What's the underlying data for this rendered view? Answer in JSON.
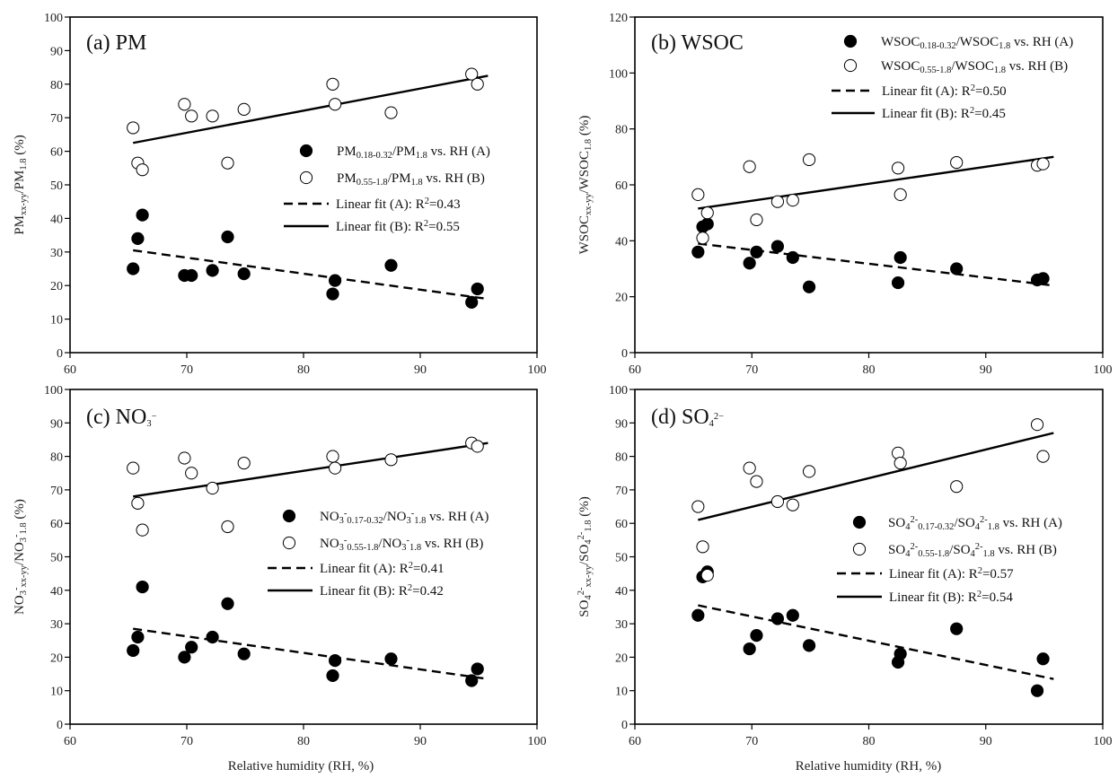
{
  "figure": {
    "xlabel": "Relative humidity (RH, %)"
  },
  "chart_data": [
    {
      "type": "scatter",
      "id": "a",
      "title": "(a) PM",
      "ylabel": "PM xx-yy /PM 1.8 (%)",
      "ylabel_parts": [
        [
          "PM",
          ""
        ],
        [
          "xx-yy",
          "sub"
        ],
        [
          "/PM",
          ""
        ],
        [
          "1.8",
          "sub"
        ],
        [
          " (%)",
          ""
        ]
      ],
      "xlim": [
        60,
        100
      ],
      "ylim": [
        0,
        100
      ],
      "xticks": [
        60,
        70,
        80,
        90,
        100
      ],
      "yticks": [
        0,
        10,
        20,
        30,
        40,
        50,
        60,
        70,
        80,
        90,
        100
      ],
      "legend_position": "middle-right",
      "series": [
        {
          "name": "PM0.18-0.32/PM1.8 vs. RH (A)",
          "marker": "filled",
          "label_parts": [
            [
              "PM",
              ""
            ],
            [
              "0.18-0.32",
              "sub"
            ],
            [
              "/PM",
              ""
            ],
            [
              "1.8",
              "sub"
            ],
            [
              "  vs. RH (A)",
              ""
            ]
          ],
          "x": [
            65.4,
            65.8,
            66.2,
            69.8,
            70.4,
            72.2,
            73.5,
            74.9,
            82.5,
            82.7,
            87.5,
            94.4,
            94.9
          ],
          "y": [
            25,
            34,
            41,
            23,
            23,
            24.5,
            34.5,
            23.5,
            17.5,
            21.5,
            26,
            15,
            19
          ]
        },
        {
          "name": "PM0.55-1.8/PM1.8 vs. RH (B)",
          "marker": "open",
          "label_parts": [
            [
              "PM",
              ""
            ],
            [
              "0.55-1.8",
              "sub"
            ],
            [
              "/PM",
              ""
            ],
            [
              "1.8",
              "sub"
            ],
            [
              "  vs. RH (B)",
              ""
            ]
          ],
          "x": [
            65.4,
            65.8,
            66.2,
            69.8,
            70.4,
            72.2,
            73.5,
            74.9,
            82.5,
            82.7,
            87.5,
            94.4,
            94.9
          ],
          "y": [
            67,
            56.5,
            54.5,
            74,
            70.5,
            70.5,
            56.5,
            72.5,
            80,
            74,
            71.5,
            83,
            80
          ]
        }
      ],
      "fits": [
        {
          "name": "Linear fit (A): R2=0.43",
          "style": "dashed",
          "label_parts": [
            [
              "Linear fit (A): R",
              ""
            ],
            [
              "2",
              "sup"
            ],
            [
              "=0.43",
              ""
            ]
          ],
          "x": [
            65.4,
            95.8
          ],
          "y": [
            30.5,
            16
          ]
        },
        {
          "name": "Linear fit (B): R2=0.55",
          "style": "solid",
          "label_parts": [
            [
              "Linear fit (B): R",
              ""
            ],
            [
              "2",
              "sup"
            ],
            [
              "=0.55",
              ""
            ]
          ],
          "x": [
            65.4,
            95.8
          ],
          "y": [
            62.5,
            82.5
          ]
        }
      ]
    },
    {
      "type": "scatter",
      "id": "b",
      "title": "(b) WSOC",
      "ylabel": "WSOC xx-yy /WSOC 1.8 (%)",
      "ylabel_parts": [
        [
          "WSOC",
          ""
        ],
        [
          "xx-yy",
          "sub"
        ],
        [
          "/WSOC",
          ""
        ],
        [
          "1.8",
          "sub"
        ],
        [
          " (%)",
          ""
        ]
      ],
      "xlim": [
        60,
        100
      ],
      "ylim": [
        0,
        120
      ],
      "xticks": [
        60,
        70,
        80,
        90,
        100
      ],
      "yticks": [
        0,
        20,
        40,
        60,
        80,
        100,
        120
      ],
      "legend_position": "top-right",
      "series": [
        {
          "name": "WSOC0.18-0.32/WSOC1.8 vs. RH (A)",
          "marker": "filled",
          "label_parts": [
            [
              "WSOC",
              ""
            ],
            [
              "0.18-0.32",
              "sub"
            ],
            [
              "/WSOC",
              ""
            ],
            [
              "1.8",
              "sub"
            ],
            [
              " vs. RH (A)",
              ""
            ]
          ],
          "x": [
            65.4,
            65.8,
            66.2,
            69.8,
            70.4,
            72.2,
            73.5,
            74.9,
            82.5,
            82.7,
            87.5,
            94.4,
            94.9
          ],
          "y": [
            36,
            45,
            46,
            32,
            36,
            38,
            34,
            23.5,
            25,
            34,
            30,
            26,
            26.5
          ]
        },
        {
          "name": "WSOC0.55-1.8/WSOC1.8 vs. RH (B)",
          "marker": "open",
          "label_parts": [
            [
              "WSOC",
              ""
            ],
            [
              "0.55-1.8",
              "sub"
            ],
            [
              "/WSOC",
              ""
            ],
            [
              "1.8",
              "sub"
            ],
            [
              " vs. RH (B)",
              ""
            ]
          ],
          "x": [
            65.4,
            65.8,
            66.2,
            69.8,
            70.4,
            72.2,
            73.5,
            74.9,
            82.5,
            82.7,
            87.5,
            94.4,
            94.9
          ],
          "y": [
            56.5,
            41,
            50,
            66.5,
            47.5,
            54,
            54.5,
            69,
            66,
            56.5,
            68,
            67,
            67.5
          ]
        }
      ],
      "fits": [
        {
          "name": "Linear fit (A): R2=0.50",
          "style": "dashed",
          "label_parts": [
            [
              "Linear fit (A): R",
              ""
            ],
            [
              "2",
              "sup"
            ],
            [
              "=0.50",
              ""
            ]
          ],
          "x": [
            65.4,
            95.8
          ],
          "y": [
            39,
            24
          ]
        },
        {
          "name": "Linear fit (B): R2=0.45",
          "style": "solid",
          "label_parts": [
            [
              "Linear fit (B): R",
              ""
            ],
            [
              "2",
              "sup"
            ],
            [
              "=0.45",
              ""
            ]
          ],
          "x": [
            65.4,
            95.8
          ],
          "y": [
            51.5,
            70
          ]
        }
      ]
    },
    {
      "type": "scatter",
      "id": "c",
      "title": "(c) NO3−",
      "title_parts": [
        [
          "(c) NO",
          ""
        ],
        [
          "3",
          "sub"
        ],
        [
          "−",
          "sup"
        ]
      ],
      "ylabel": "NO3- xx-yy /NO3- 1.8 (%)",
      "ylabel_parts": [
        [
          "NO",
          ""
        ],
        [
          "3",
          "sub"
        ],
        [
          "-",
          "sup"
        ],
        [
          "xx-yy",
          "sub"
        ],
        [
          "/NO",
          ""
        ],
        [
          "3",
          "sub"
        ],
        [
          "-",
          "sup"
        ],
        [
          "1.8",
          "sub"
        ],
        [
          " (%)",
          ""
        ]
      ],
      "xlim": [
        60,
        100
      ],
      "ylim": [
        0,
        100
      ],
      "xticks": [
        60,
        70,
        80,
        90,
        100
      ],
      "yticks": [
        0,
        10,
        20,
        30,
        40,
        50,
        60,
        70,
        80,
        90,
        100
      ],
      "legend_position": "middle-right",
      "series": [
        {
          "name": "NO3-0.17-0.32/NO3-1.8 vs. RH (A)",
          "marker": "filled",
          "label_parts": [
            [
              "NO",
              ""
            ],
            [
              "3",
              "sub"
            ],
            [
              "-",
              "sup"
            ],
            [
              "0.17-0.32",
              "sub"
            ],
            [
              "/NO",
              ""
            ],
            [
              "3",
              "sub"
            ],
            [
              "-",
              "sup"
            ],
            [
              "1.8",
              "sub"
            ],
            [
              " vs. RH (A)",
              ""
            ]
          ],
          "x": [
            65.4,
            65.8,
            66.2,
            69.8,
            70.4,
            72.2,
            73.5,
            74.9,
            82.5,
            82.7,
            87.5,
            94.4,
            94.9
          ],
          "y": [
            22,
            26,
            41,
            20,
            23,
            26,
            36,
            21,
            14.5,
            19,
            19.5,
            13,
            16.5
          ]
        },
        {
          "name": "NO3-0.55-1.8/NO3-1.8 vs. RH (B)",
          "marker": "open",
          "label_parts": [
            [
              "NO",
              ""
            ],
            [
              "3",
              "sub"
            ],
            [
              "-",
              "sup"
            ],
            [
              "0.55-1.8",
              "sub"
            ],
            [
              "/NO",
              ""
            ],
            [
              "3",
              "sub"
            ],
            [
              "-",
              "sup"
            ],
            [
              "1.8",
              "sub"
            ],
            [
              " vs. RH (B)",
              ""
            ]
          ],
          "x": [
            65.4,
            65.8,
            66.2,
            69.8,
            70.4,
            72.2,
            73.5,
            74.9,
            82.5,
            82.7,
            87.5,
            94.4,
            94.9
          ],
          "y": [
            76.5,
            66,
            58,
            79.5,
            75,
            70.5,
            59,
            78,
            80,
            76.5,
            79,
            84,
            83
          ]
        }
      ],
      "fits": [
        {
          "name": "Linear fit (A): R2=0.41",
          "style": "dashed",
          "label_parts": [
            [
              "Linear fit (A): R",
              ""
            ],
            [
              "2",
              "sup"
            ],
            [
              "=0.41",
              ""
            ]
          ],
          "x": [
            65.4,
            95.8
          ],
          "y": [
            28.5,
            13.5
          ]
        },
        {
          "name": "Linear fit (B): R2=0.42",
          "style": "solid",
          "label_parts": [
            [
              "Linear fit (B): R",
              ""
            ],
            [
              "2",
              "sup"
            ],
            [
              "=0.42",
              ""
            ]
          ],
          "x": [
            65.4,
            95.8
          ],
          "y": [
            68,
            84
          ]
        }
      ]
    },
    {
      "type": "scatter",
      "id": "d",
      "title": "(d) SO42−",
      "title_parts": [
        [
          "(d) SO",
          ""
        ],
        [
          "4",
          "sub"
        ],
        [
          "2−",
          "sup"
        ]
      ],
      "ylabel": "SO42- xx-yy /SO42- 1.8 (%)",
      "ylabel_parts": [
        [
          "SO",
          ""
        ],
        [
          "4",
          "sub"
        ],
        [
          "2-",
          "sup"
        ],
        [
          "xx-yy",
          "sub"
        ],
        [
          "/SO",
          ""
        ],
        [
          "4",
          "sub"
        ],
        [
          "2-",
          "sup"
        ],
        [
          "1.8",
          "sub"
        ],
        [
          " (%)",
          ""
        ]
      ],
      "xlim": [
        60,
        100
      ],
      "ylim": [
        0,
        100
      ],
      "xticks": [
        60,
        70,
        80,
        90,
        100
      ],
      "yticks": [
        0,
        10,
        20,
        30,
        40,
        50,
        60,
        70,
        80,
        90,
        100
      ],
      "legend_position": "middle-right",
      "series": [
        {
          "name": "SO42-0.17-0.32/SO42-1.8 vs. RH (A)",
          "marker": "filled",
          "label_parts": [
            [
              "SO",
              ""
            ],
            [
              "4",
              "sub"
            ],
            [
              "2-",
              "sup"
            ],
            [
              "0.17-0.32",
              "sub"
            ],
            [
              "/SO",
              ""
            ],
            [
              "4",
              "sub"
            ],
            [
              "2-",
              "sup"
            ],
            [
              "1.8",
              "sub"
            ],
            [
              " vs. RH (A)",
              ""
            ]
          ],
          "x": [
            65.4,
            65.8,
            66.2,
            69.8,
            70.4,
            72.2,
            73.5,
            74.9,
            82.5,
            82.7,
            87.5,
            94.4,
            94.9
          ],
          "y": [
            32.5,
            44,
            45.5,
            22.5,
            26.5,
            31.5,
            32.5,
            23.5,
            18.5,
            21,
            28.5,
            10,
            19.5
          ]
        },
        {
          "name": "SO42-0.55-1.8/SO42-1.8 vs. RH (B)",
          "marker": "open",
          "label_parts": [
            [
              "SO",
              ""
            ],
            [
              "4",
              "sub"
            ],
            [
              "2-",
              "sup"
            ],
            [
              "0.55-1.8",
              "sub"
            ],
            [
              "/SO",
              ""
            ],
            [
              "4",
              "sub"
            ],
            [
              "2-",
              "sup"
            ],
            [
              "1.8",
              "sub"
            ],
            [
              " vs. RH (B)",
              ""
            ]
          ],
          "x": [
            65.4,
            65.8,
            66.2,
            69.8,
            70.4,
            72.2,
            73.5,
            74.9,
            82.5,
            82.7,
            87.5,
            94.4,
            94.9
          ],
          "y": [
            65,
            53,
            44.5,
            76.5,
            72.5,
            66.5,
            65.5,
            75.5,
            81,
            78,
            71,
            89.5,
            80
          ]
        }
      ],
      "fits": [
        {
          "name": "Linear fit (A): R2=0.57",
          "style": "dashed",
          "label_parts": [
            [
              "Linear fit (A): R",
              ""
            ],
            [
              "2",
              "sup"
            ],
            [
              "=0.57",
              ""
            ]
          ],
          "x": [
            65.4,
            95.8
          ],
          "y": [
            35.5,
            13.5
          ]
        },
        {
          "name": "Linear fit (B): R2=0.54",
          "style": "solid",
          "label_parts": [
            [
              "Linear fit (B): R",
              ""
            ],
            [
              "2",
              "sup"
            ],
            [
              "=0.54",
              ""
            ]
          ],
          "x": [
            65.4,
            95.8
          ],
          "y": [
            61,
            87
          ]
        }
      ]
    }
  ]
}
